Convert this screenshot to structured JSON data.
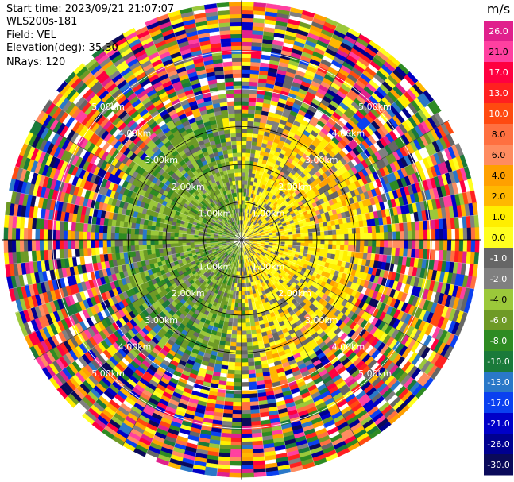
{
  "header": {
    "start_time": "Start time: 2023/09/21 21:07:07",
    "instrument": "WLS200s-181",
    "field": "Field: VEL",
    "elevation": "Elevation(deg): 35.30",
    "nrays": "NRays: 120"
  },
  "chart_data": {
    "type": "heatmap",
    "projection": "polar PPI",
    "field": "VEL",
    "units": "m/s",
    "range_rings_km": [
      1.0,
      2.0,
      3.0,
      4.0,
      5.0
    ],
    "range_ring_labels": [
      "1.00km",
      "2.00km",
      "3.00km",
      "4.00km",
      "5.00km"
    ],
    "max_range_km": 6.35,
    "n_rays": 120,
    "colorbar": {
      "label": "m/s",
      "ticks": [
        "26.0",
        "21.0",
        "17.0",
        "13.0",
        "10.0",
        "8.0",
        "6.0",
        "4.0",
        "2.0",
        "1.0",
        "0.0",
        "-1.0",
        "-2.0",
        "-4.0",
        "-6.0",
        "-8.0",
        "-10.0",
        "-13.0",
        "-17.0",
        "-21.0",
        "-26.0",
        "-30.0"
      ],
      "colors": [
        "#e0208c",
        "#ff40a0",
        "#ff0040",
        "#ff2020",
        "#ff4a10",
        "#ff7040",
        "#ff8c60",
        "#ffa000",
        "#ffb800",
        "#ffee00",
        "#ffff20",
        "#666666",
        "#808080",
        "#9bc83a",
        "#6e9a26",
        "#2e8b22",
        "#1a7a3a",
        "#2a78c8",
        "#0a40f0",
        "#0000c8",
        "#000090",
        "#0a0a5a"
      ]
    },
    "pattern": {
      "dominant_near_field": "positive ~1-2 m/s (yellow) toward east half, negative ~-2 to -6 m/s (green) toward west half",
      "outer_field": "noise, all bins"
    }
  }
}
